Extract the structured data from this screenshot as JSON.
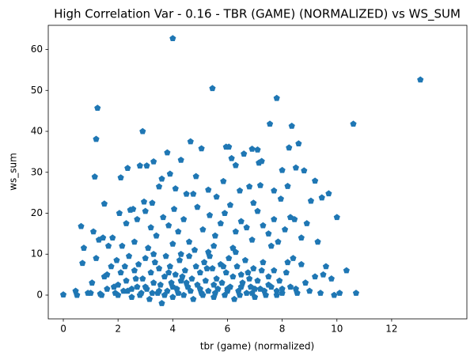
{
  "chart_data": {
    "type": "scatter",
    "title": "High Correlation Var - 0.16 - TBR (GAME) (NORMALIZED) vs WS_SUM",
    "x_label": "tbr (game) (normalized)",
    "y_label": "ws_sum",
    "color": "#1f77b4",
    "marker": "pentagon",
    "grid": false,
    "xlim": [
      -0.55,
      14.75
    ],
    "ylim": [
      -5.8,
      65.9
    ],
    "xticks": [
      0,
      2,
      4,
      6,
      8,
      10,
      12
    ],
    "yticks": [
      0,
      10,
      20,
      30,
      40,
      50,
      60
    ],
    "x": [
      4.0,
      13.05,
      5.45,
      7.8,
      1.25,
      10.6,
      7.55,
      8.35,
      2.9,
      1.2,
      4.65,
      8.6,
      3.8,
      6.9,
      7.1,
      5.05,
      6.05,
      5.95,
      6.6,
      8.25,
      7.25,
      7.15,
      3.3,
      3.05,
      2.8,
      2.35,
      1.15,
      2.1,
      4.3,
      6.15,
      6.3,
      5.3,
      8.0,
      8.5,
      8.8,
      9.2,
      8.2,
      9.7,
      10.0,
      9.45,
      9.05,
      1.5,
      3.9,
      3.25,
      3.6,
      4.5,
      4.75,
      7.7,
      7.2,
      6.8,
      5.85,
      6.45,
      7.95,
      4.1,
      4.85,
      5.6,
      6.95,
      3.5,
      2.55,
      2.95,
      0.65,
      1.1,
      1.45,
      1.8,
      2.05,
      2.3,
      2.45,
      2.7,
      3.0,
      3.2,
      3.4,
      3.65,
      3.85,
      4.05,
      4.2,
      4.4,
      4.6,
      4.9,
      5.1,
      5.35,
      5.55,
      5.75,
      5.9,
      6.1,
      6.3,
      6.5,
      6.7,
      6.9,
      7.1,
      7.3,
      7.5,
      7.7,
      7.85,
      8.1,
      8.3,
      8.45,
      8.7,
      8.9,
      9.3,
      0.75,
      1.3,
      1.65,
      2.15,
      2.6,
      3.1,
      4.0,
      4.8,
      5.5,
      6.2,
      7.6,
      0.0,
      0.45,
      0.7,
      0.9,
      1.05,
      1.2,
      1.35,
      1.5,
      1.6,
      1.75,
      1.85,
      1.95,
      2.0,
      2.1,
      2.2,
      2.3,
      2.4,
      2.5,
      2.6,
      2.7,
      2.75,
      2.85,
      2.9,
      3.0,
      3.05,
      3.15,
      3.2,
      3.3,
      3.35,
      3.45,
      3.5,
      3.55,
      3.6,
      3.7,
      3.75,
      3.8,
      3.9,
      3.95,
      4.0,
      4.1,
      4.15,
      4.25,
      4.3,
      4.4,
      4.45,
      4.55,
      4.6,
      4.7,
      4.75,
      4.85,
      4.9,
      5.0,
      5.05,
      5.15,
      5.2,
      5.3,
      5.35,
      5.45,
      5.5,
      5.6,
      5.65,
      5.75,
      5.8,
      5.9,
      5.95,
      6.05,
      6.1,
      6.2,
      6.25,
      6.35,
      6.4,
      6.5,
      6.55,
      6.65,
      6.7,
      6.8,
      6.85,
      6.95,
      7.0,
      7.1,
      7.2,
      7.3,
      7.4,
      7.5,
      7.6,
      7.7,
      7.8,
      7.9,
      8.0,
      8.15,
      8.3,
      8.4,
      8.55,
      8.7,
      8.85,
      9.0,
      9.2,
      9.4,
      9.6,
      9.9,
      10.1,
      10.35,
      10.7,
      0.5,
      1.0,
      1.4,
      1.9,
      2.35,
      2.8,
      3.25,
      3.7,
      4.2,
      4.65,
      5.1,
      5.55,
      6.0,
      6.45,
      6.9,
      7.35,
      7.8,
      2.0,
      2.5,
      3.0,
      3.5,
      4.0,
      4.5,
      5.0,
      5.5,
      6.0,
      6.5,
      7.0,
      7.5,
      8.0,
      8.5,
      9.5,
      9.8,
      3.3,
      4.3,
      5.3,
      6.3,
      1.6,
      2.25,
      2.65,
      3.85,
      4.35,
      5.25,
      5.85,
      6.75,
      7.25,
      8.2
    ],
    "values": [
      62.7,
      52.6,
      50.5,
      48.1,
      45.7,
      41.8,
      41.8,
      41.3,
      40.0,
      38.1,
      37.5,
      37.0,
      34.8,
      35.7,
      35.5,
      35.8,
      36.2,
      36.2,
      34.5,
      36.0,
      32.7,
      32.3,
      32.6,
      31.6,
      31.6,
      31.0,
      28.9,
      28.7,
      33.0,
      33.4,
      31.7,
      25.7,
      30.5,
      31.1,
      30.4,
      27.9,
      26.6,
      24.8,
      19.0,
      23.8,
      23.0,
      22.3,
      29.6,
      22.5,
      28.4,
      24.7,
      24.7,
      25.5,
      26.8,
      26.5,
      27.8,
      25.5,
      23.5,
      26.0,
      29.0,
      24.0,
      22.5,
      26.5,
      21.0,
      22.8,
      16.8,
      15.5,
      14.0,
      14.0,
      20.0,
      17.5,
      20.8,
      18.5,
      20.5,
      16.5,
      14.5,
      19.0,
      17.0,
      21.0,
      15.5,
      18.5,
      13.0,
      21.5,
      16.0,
      19.5,
      14.5,
      17.5,
      20.0,
      22.0,
      15.5,
      18.0,
      16.5,
      13.5,
      20.5,
      17.0,
      15.0,
      18.5,
      13.0,
      16.0,
      19.0,
      18.5,
      14.0,
      17.5,
      13.0,
      11.5,
      13.5,
      12.0,
      12.0,
      13.0,
      11.5,
      12.5,
      11.0,
      12.0,
      11.5,
      12.0,
      0.1,
      1.0,
      7.8,
      0.5,
      3.0,
      9.0,
      0.3,
      4.5,
      1.5,
      7.0,
      2.0,
      8.5,
      0.0,
      5.5,
      1.0,
      3.5,
      9.5,
      -0.5,
      6.0,
      2.0,
      7.5,
      0.5,
      4.0,
      9.0,
      1.5,
      -1.0,
      5.5,
      3.0,
      8.0,
      0.5,
      6.5,
      2.5,
      -2.0,
      4.5,
      9.5,
      1.0,
      7.0,
      3.0,
      -0.5,
      5.0,
      1.5,
      8.5,
      3.5,
      0.0,
      6.0,
      2.0,
      9.5,
      4.0,
      -1.0,
      7.0,
      2.5,
      5.5,
      0.5,
      8.0,
      3.5,
      1.0,
      9.5,
      6.5,
      -0.5,
      4.0,
      1.5,
      7.5,
      3.0,
      0.0,
      5.5,
      9.0,
      2.0,
      4.5,
      -1.0,
      7.0,
      1.0,
      5.0,
      3.0,
      8.5,
      0.5,
      4.0,
      2.0,
      6.5,
      -0.5,
      3.5,
      1.5,
      8.0,
      0.0,
      4.5,
      2.0,
      6.0,
      1.0,
      3.5,
      0.5,
      5.5,
      2.0,
      9.0,
      0.5,
      7.5,
      3.0,
      1.0,
      4.5,
      0.5,
      7.0,
      0.0,
      0.5,
      6.0,
      0.5,
      0.0,
      0.5,
      0.0,
      0.5,
      1.0,
      0.0,
      0.5,
      0.0,
      0.5,
      1.0,
      0.0,
      0.5,
      1.0,
      0.0,
      0.5,
      1.0,
      0.0,
      2.5,
      1.5,
      2.0,
      1.0,
      2.0,
      3.0,
      1.5,
      2.5,
      1.5,
      2.0,
      1.5,
      2.5,
      1.5,
      1.5,
      5.0,
      4.0,
      10.0,
      10.0,
      10.5,
      10.5,
      5.0,
      7.0,
      4.0,
      5.5,
      4.5,
      6.5,
      7.0,
      5.5,
      6.0,
      8.0
    ]
  }
}
